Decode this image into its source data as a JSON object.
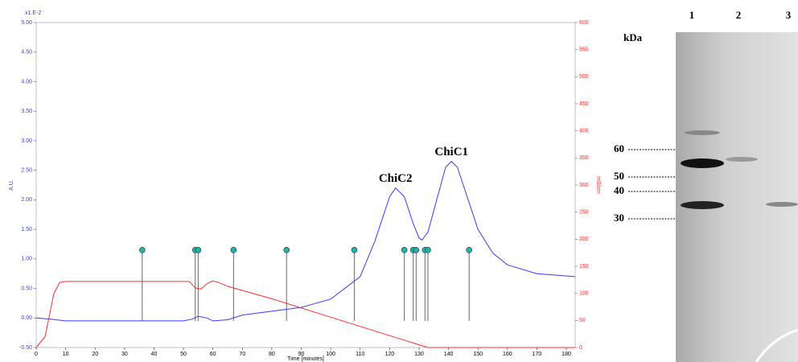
{
  "chart_data": {
    "type": "line",
    "x_label": "Time [minutes]",
    "y_label": "A.U.",
    "y2_label": "mS/cm",
    "y_scale_label": "x1.E-2",
    "xlim": [
      0,
      183
    ],
    "xticks": [
      0,
      10,
      20,
      30,
      40,
      50,
      60,
      70,
      80,
      90,
      100,
      110,
      120,
      130,
      140,
      150,
      160,
      170,
      180
    ],
    "ylim": [
      -0.5,
      5.0
    ],
    "yticks": [
      {
        "value": -0.5,
        "label": "-0.50"
      },
      {
        "value": 0,
        "label": "0.00"
      },
      {
        "value": 0.5,
        "label": "0.50"
      },
      {
        "value": 1.0,
        "label": "1.00"
      },
      {
        "value": 1.5,
        "label": "1.50"
      },
      {
        "value": 2.0,
        "label": "2.00"
      },
      {
        "value": 2.5,
        "label": "2.50"
      },
      {
        "value": 3.0,
        "label": "3.00"
      },
      {
        "value": 3.5,
        "label": "3.50"
      },
      {
        "value": 4.0,
        "label": "4.00"
      },
      {
        "value": 4.5,
        "label": "4.50"
      },
      {
        "value": 5.0,
        "label": "5.00"
      }
    ],
    "y2lim": [
      0,
      600
    ],
    "y2ticks": [
      0,
      50,
      100,
      150,
      200,
      250,
      300,
      350,
      400,
      450,
      500,
      550,
      600
    ],
    "series": [
      {
        "name": "A.U.",
        "color": "#3a3aff",
        "x": [
          0,
          5,
          10,
          50,
          53,
          55,
          58,
          60,
          65,
          70,
          90,
          100,
          110,
          115,
          120,
          122,
          125,
          128,
          130,
          131,
          133,
          136,
          139,
          141,
          143,
          146,
          150,
          155,
          160,
          170,
          183
        ],
        "values": [
          0,
          -0.02,
          -0.05,
          -0.05,
          -0.02,
          0.03,
          0,
          -0.05,
          -0.03,
          0.05,
          0.18,
          0.32,
          0.7,
          1.3,
          2.05,
          2.2,
          2.05,
          1.6,
          1.35,
          1.32,
          1.45,
          2.0,
          2.55,
          2.65,
          2.55,
          2.1,
          1.5,
          1.1,
          0.9,
          0.75,
          0.7
        ]
      },
      {
        "name": "mS/cm",
        "color": "#ff3030",
        "axis": "y2",
        "x": [
          0,
          3,
          6,
          8,
          10,
          52,
          54,
          56,
          58,
          60,
          62,
          65,
          80,
          100,
          120,
          133,
          183
        ],
        "values": [
          0,
          20,
          100,
          120,
          122,
          122,
          110,
          108,
          118,
          123,
          120,
          113,
          90,
          56,
          22,
          0,
          0
        ]
      }
    ],
    "markers": [
      36,
      54,
      55,
      67,
      85,
      108,
      125,
      128,
      129,
      132,
      133,
      147
    ],
    "annotations": [
      {
        "text": "ChiC2",
        "x": 122,
        "y": 2.35
      },
      {
        "text": "ChiC1",
        "x": 141,
        "y": 2.8
      }
    ]
  },
  "gel": {
    "unit": "kDa",
    "lanes": [
      "1",
      "2",
      "3"
    ],
    "sizes": [
      "60",
      "50",
      "40",
      "30"
    ]
  }
}
